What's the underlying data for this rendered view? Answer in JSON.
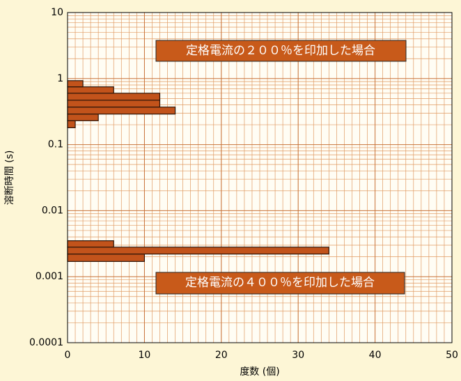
{
  "chart_data": {
    "type": "histogram",
    "orientation": "horizontal",
    "xlabel": "度数 (個)",
    "ylabel": "溶断時間 (s)",
    "xlim": [
      0,
      50
    ],
    "xticks": [
      0,
      10,
      20,
      30,
      40,
      50
    ],
    "ylim": [
      0.0001,
      10
    ],
    "yticks": [
      0.0001,
      0.001,
      0.01,
      0.1,
      1,
      10
    ],
    "yscale": "log",
    "grid": true,
    "series": [
      {
        "color": "#c2531b",
        "bins": [
          0.18,
          0.23,
          0.29,
          0.37,
          0.47,
          0.6,
          0.75,
          0.93
        ],
        "values": [
          1,
          4,
          14,
          12,
          12,
          6,
          2
        ]
      },
      {
        "color": "#c2531b",
        "bins": [
          0.0017,
          0.0022,
          0.0028,
          0.0035
        ],
        "values": [
          10,
          34,
          6
        ]
      }
    ],
    "annotations": [
      "定格電流の２００％を印加した場合",
      "定格電流の４００％を印加した場合"
    ]
  }
}
